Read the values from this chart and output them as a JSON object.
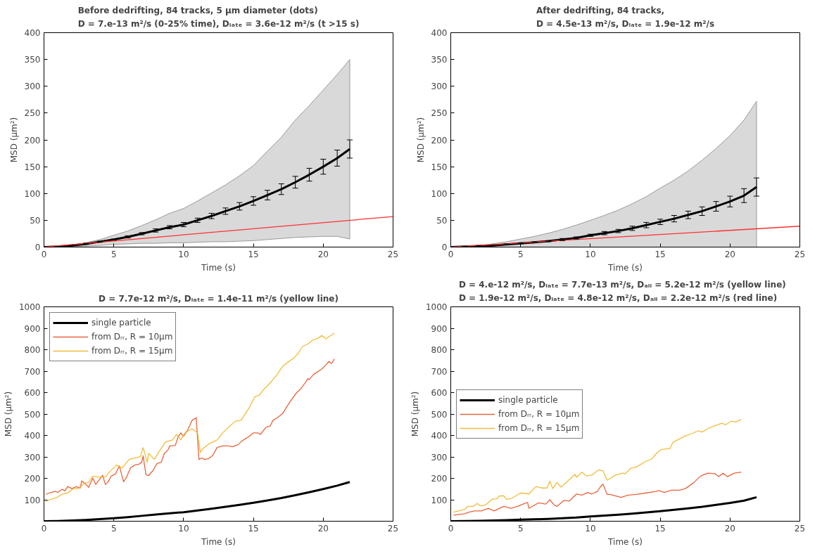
{
  "chart_data": [
    {
      "type": "line",
      "title": "Before dedrifting, 84 tracks, 5 μm diameter (dots)\nD = 7.e-13 m²/s (0-25% time), Dₗₐₜₑ = 3.6e-12 m²/s (t >15 s)",
      "xlabel": "Time (s)",
      "ylabel": "MSD (μm²)",
      "xlim": [
        0,
        25
      ],
      "ylim": [
        0,
        400
      ],
      "xticks": [
        0,
        5,
        10,
        15,
        20,
        25
      ],
      "yticks": [
        0,
        50,
        100,
        150,
        200,
        250,
        300,
        350,
        400
      ],
      "legend": false,
      "marker": "none",
      "line_style": "solid",
      "series": [
        {
          "color": "#000000",
          "x": [
            0,
            1,
            2,
            3,
            4,
            5,
            6,
            7,
            8,
            9,
            10,
            11,
            12,
            13,
            14,
            15,
            16,
            17,
            18,
            19,
            20,
            21,
            21.9
          ],
          "values": [
            0,
            1,
            3,
            6,
            10,
            14,
            19,
            25,
            31,
            37,
            42,
            50,
            58,
            67,
            76,
            86,
            97,
            108,
            121,
            135,
            150,
            166,
            183
          ],
          "errors": [
            0,
            0,
            0,
            1,
            1,
            1,
            2,
            2,
            3,
            3,
            4,
            4,
            5,
            6,
            7,
            8,
            9,
            10,
            11,
            12,
            14,
            15,
            17
          ],
          "upper": [
            0,
            1,
            4,
            8,
            14,
            22,
            30,
            40,
            51,
            63,
            72,
            86,
            101,
            116,
            133,
            152,
            179,
            205,
            237,
            264,
            293,
            322,
            350
          ],
          "lower": [
            0,
            0,
            1,
            2,
            3,
            5,
            6,
            7,
            7,
            8,
            8,
            9,
            10,
            10,
            11,
            12,
            14,
            16,
            18,
            19,
            20,
            20,
            15
          ]
        },
        {
          "color": "#ff3030",
          "x": [
            0,
            25
          ],
          "values": [
            0,
            57
          ]
        }
      ]
    },
    {
      "type": "line",
      "title": "After dedrifting, 84 tracks,\nD = 4.5e-13 m²/s, Dₗₐₜₑ = 1.9e-12 m²/s",
      "xlabel": "Time (s)",
      "ylabel": "MSD (μm²)",
      "xlim": [
        0,
        25
      ],
      "ylim": [
        0,
        400
      ],
      "xticks": [
        0,
        5,
        10,
        15,
        20,
        25
      ],
      "yticks": [
        0,
        50,
        100,
        150,
        200,
        250,
        300,
        350,
        400
      ],
      "legend": false,
      "marker": "none",
      "line_style": "solid",
      "series": [
        {
          "color": "#000000",
          "x": [
            0,
            1,
            2,
            3,
            4,
            5,
            6,
            7,
            8,
            9,
            10,
            11,
            12,
            13,
            14,
            15,
            16,
            17,
            18,
            19,
            20,
            21,
            21.9
          ],
          "values": [
            0,
            1,
            2,
            3,
            5,
            7,
            9,
            11,
            14,
            17,
            22,
            26,
            30,
            35,
            41,
            47,
            53,
            60,
            67,
            76,
            85,
            96,
            112
          ],
          "errors": [
            0,
            0,
            0,
            0,
            1,
            1,
            1,
            1,
            2,
            2,
            2,
            3,
            3,
            4,
            5,
            5,
            6,
            7,
            8,
            9,
            10,
            13,
            17
          ],
          "upper": [
            0,
            1,
            3,
            6,
            10,
            15,
            20,
            26,
            33,
            41,
            50,
            59,
            69,
            81,
            94,
            110,
            125,
            142,
            162,
            184,
            208,
            237,
            272
          ],
          "lower": [
            0,
            0,
            0,
            0,
            0,
            0,
            0,
            0,
            0,
            0,
            0,
            0,
            0,
            0,
            0,
            0,
            0,
            0,
            0,
            0,
            0,
            0,
            0
          ]
        },
        {
          "color": "#ff3030",
          "x": [
            0,
            25
          ],
          "values": [
            0,
            39
          ]
        }
      ]
    },
    {
      "type": "line",
      "title": "D = 7.7e-12 m²/s, Dₗₐₜₑ = 1.4e-11 m²/s (yellow line)",
      "xlabel": "Time (s)",
      "ylabel": "MSD (μm²)",
      "xlim": [
        0,
        25
      ],
      "ylim": [
        0,
        1000
      ],
      "xticks": [
        0,
        5,
        10,
        15,
        20,
        25
      ],
      "yticks": [
        100,
        200,
        300,
        400,
        500,
        600,
        700,
        800,
        900,
        1000
      ],
      "legend": "top left",
      "marker": "none",
      "line_style": "solid",
      "series": [
        {
          "name": "single particle",
          "color": "#000000",
          "x": [
            0,
            1,
            2,
            3,
            4,
            5,
            6,
            7,
            8,
            9,
            10,
            11,
            12,
            13,
            14,
            15,
            16,
            17,
            18,
            19,
            20,
            21,
            21.9
          ],
          "values": [
            0,
            1,
            3,
            6,
            10,
            14,
            19,
            25,
            31,
            37,
            42,
            50,
            58,
            67,
            76,
            86,
            97,
            108,
            121,
            135,
            150,
            166,
            183
          ]
        },
        {
          "name": "from Dᵣᵣ, R = 10μm",
          "color": "#e8643c",
          "x": [
            0.14,
            0.4,
            0.8,
            1.0,
            1.3,
            1.5,
            1.7,
            2.0,
            2.3,
            2.6,
            2.7,
            3.0,
            3.2,
            3.5,
            3.7,
            4.2,
            4.4,
            4.6,
            4.8,
            5.1,
            5.2,
            5.4,
            5.7,
            5.9,
            6.2,
            6.5,
            6.8,
            7.0,
            7.1,
            7.3,
            7.5,
            7.8,
            8.1,
            8.4,
            8.6,
            8.9,
            9.0,
            9.4,
            9.6,
            9.8,
            10.0,
            10.3,
            10.6,
            10.9,
            11.1,
            11.3,
            11.5,
            11.8,
            12.1,
            12.4,
            12.8,
            13.2,
            13.5,
            13.9,
            14.2,
            14.7,
            15.0,
            15.3,
            15.5,
            15.9,
            16.2,
            16.4,
            16.8,
            17.1,
            17.4,
            17.7,
            18.1,
            18.4,
            18.7,
            18.9,
            19.0,
            19.3,
            19.6,
            19.9,
            20.2,
            20.4,
            20.6,
            20.8
          ],
          "values": [
            126,
            132,
            139,
            135,
            149,
            142,
            162,
            152,
            161,
            155,
            188,
            171,
            158,
            201,
            171,
            214,
            171,
            184,
            210,
            219,
            230,
            258,
            184,
            204,
            249,
            262,
            266,
            275,
            305,
            217,
            213,
            236,
            269,
            275,
            314,
            334,
            351,
            353,
            392,
            412,
            396,
            427,
            470,
            483,
            288,
            295,
            288,
            292,
            308,
            344,
            351,
            351,
            347,
            357,
            375,
            396,
            412,
            412,
            405,
            438,
            444,
            470,
            487,
            503,
            535,
            564,
            600,
            619,
            645,
            665,
            661,
            684,
            697,
            710,
            730,
            745,
            736,
            756
          ]
        },
        {
          "name": "from Dᵣᵣ, R = 15μm",
          "color": "#f0bc3c",
          "x": [
            0.14,
            0.4,
            0.9,
            1.3,
            1.7,
            2.1,
            2.5,
            2.9,
            3.2,
            3.5,
            3.9,
            4.4,
            4.7,
            5.2,
            5.6,
            6.1,
            6.5,
            6.9,
            7.1,
            7.4,
            7.5,
            7.9,
            8.3,
            8.7,
            9.2,
            9.5,
            9.8,
            10.1,
            10.6,
            11.0,
            11.2,
            11.4,
            11.8,
            12.4,
            12.8,
            13.2,
            13.7,
            14.1,
            14.7,
            15.1,
            15.4,
            15.8,
            16.2,
            16.7,
            17.1,
            17.5,
            17.9,
            18.2,
            18.5,
            18.9,
            19.2,
            19.6,
            19.9,
            20.2,
            20.4,
            20.8
          ],
          "values": [
            91,
            100,
            110,
            126,
            132,
            152,
            152,
            178,
            181,
            210,
            206,
            206,
            230,
            262,
            249,
            288,
            295,
            301,
            343,
            275,
            317,
            288,
            331,
            369,
            379,
            405,
            379,
            412,
            431,
            412,
            321,
            340,
            360,
            379,
            412,
            438,
            466,
            470,
            529,
            581,
            587,
            619,
            645,
            684,
            723,
            743,
            762,
            782,
            814,
            827,
            843,
            853,
            866,
            851,
            860,
            877
          ]
        }
      ]
    },
    {
      "type": "line",
      "title": "D = 4.e-12 m²/s, Dₗₐₜₑ = 7.7e-13 m²/s,  Dₐₗₗ = 5.2e-12 m²/s  (yellow line)\nD = 1.9e-12 m²/s, Dₗₐₜₑ = 4.8e-12 m²/s, Dₐₗₗ = 2.2e-12 m²/s  (red line)",
      "xlabel": "Time (s)",
      "ylabel": "MSD (μm²)",
      "xlim": [
        0,
        25
      ],
      "ylim": [
        0,
        1000
      ],
      "xticks": [
        0,
        5,
        10,
        15,
        20,
        25
      ],
      "yticks": [
        100,
        200,
        300,
        400,
        500,
        600,
        700,
        800,
        900,
        1000
      ],
      "legend": "left",
      "marker": "none",
      "line_style": "solid",
      "series": [
        {
          "name": "single particle",
          "color": "#000000",
          "x": [
            0,
            1,
            2,
            3,
            4,
            5,
            6,
            7,
            8,
            9,
            10,
            11,
            12,
            13,
            14,
            15,
            16,
            17,
            18,
            19,
            20,
            21,
            21.9
          ],
          "values": [
            0,
            1,
            2,
            3,
            5,
            7,
            9,
            11,
            14,
            17,
            22,
            26,
            30,
            35,
            41,
            47,
            53,
            60,
            67,
            76,
            85,
            96,
            112
          ]
        },
        {
          "name": "from Dᵣᵣ, R = 10μm",
          "color": "#e8643c",
          "x": [
            0.2,
            1.0,
            1.3,
            1.7,
            2.2,
            2.7,
            3.1,
            3.5,
            3.8,
            4.3,
            4.8,
            5.3,
            5.5,
            5.6,
            6.3,
            6.8,
            7.1,
            7.4,
            7.6,
            8.1,
            8.5,
            9.0,
            9.4,
            9.8,
            10.1,
            10.5,
            10.7,
            10.9,
            11.2,
            11.4,
            12.2,
            12.7,
            13.3,
            14.0,
            14.7,
            14.9,
            15.3,
            15.8,
            16.4,
            16.8,
            17.4,
            17.9,
            18.4,
            18.9,
            19.2,
            19.5,
            19.8,
            20.3,
            20.8
          ],
          "values": [
            28,
            35,
            42,
            48,
            48,
            60,
            48,
            60,
            69,
            60,
            69,
            83,
            87,
            60,
            86,
            80,
            100,
            76,
            69,
            97,
            94,
            127,
            122,
            134,
            127,
            139,
            159,
            173,
            125,
            125,
            111,
            122,
            125,
            132,
            139,
            143,
            134,
            145,
            145,
            152,
            180,
            211,
            224,
            222,
            208,
            224,
            208,
            224,
            229
          ]
        },
        {
          "name": "from Dᵣᵣ, R = 15μm",
          "color": "#f0bc3c",
          "x": [
            0.2,
            1.0,
            1.2,
            1.6,
            1.9,
            2.1,
            2.5,
            3.0,
            3.3,
            3.5,
            3.8,
            4.0,
            4.4,
            5.0,
            5.6,
            6.1,
            6.5,
            6.9,
            7.1,
            7.3,
            7.6,
            7.9,
            8.5,
            8.9,
            9.0,
            9.4,
            9.7,
            10.1,
            10.6,
            10.9,
            11.2,
            11.8,
            12.3,
            12.5,
            12.9,
            13.3,
            13.9,
            14.4,
            14.7,
            15.1,
            15.7,
            15.9,
            16.4,
            16.8,
            17.3,
            17.7,
            18.0,
            18.4,
            19.0,
            19.4,
            19.7,
            20.1,
            20.4,
            20.8
          ],
          "values": [
            42,
            55,
            69,
            69,
            83,
            72,
            76,
            104,
            104,
            118,
            118,
            101,
            108,
            132,
            127,
            162,
            155,
            155,
            187,
            152,
            180,
            159,
            194,
            219,
            205,
            229,
            211,
            215,
            240,
            235,
            191,
            215,
            224,
            222,
            247,
            253,
            277,
            291,
            314,
            335,
            339,
            367,
            385,
            398,
            409,
            422,
            416,
            432,
            447,
            457,
            450,
            467,
            463,
            474
          ]
        }
      ]
    }
  ]
}
